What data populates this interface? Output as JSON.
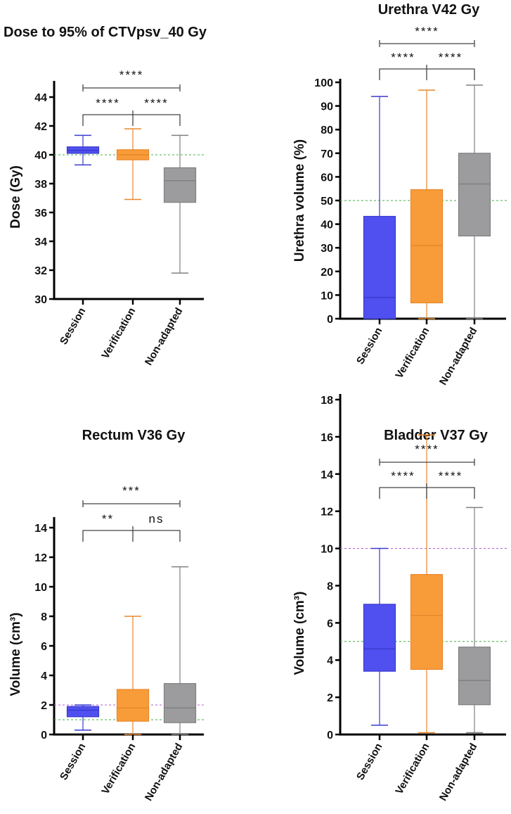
{
  "colors": {
    "session": "#5050f0",
    "verification": "#f89c3a",
    "non_adapted": "#9c9c9e",
    "green_ref": "#3cb043",
    "purple_ref": "#b060d0"
  },
  "chart_data": [
    {
      "type": "box",
      "title": "Dose to 95% of CTVpsv_40 Gy",
      "ylabel": "Dose (Gy)",
      "ylim": [
        30,
        44
      ],
      "yticks": [
        30,
        32,
        34,
        36,
        38,
        40,
        42,
        44
      ],
      "categories": [
        "Session",
        "Verification",
        "Non-adapted"
      ],
      "series": [
        {
          "name": "Session",
          "min": 39.3,
          "q1": 40.1,
          "median": 40.3,
          "q3": 40.55,
          "max": 41.35
        },
        {
          "name": "Verification",
          "min": 36.9,
          "q1": 39.65,
          "median": 40.0,
          "q3": 40.35,
          "max": 41.8
        },
        {
          "name": "Non-adapted",
          "min": 31.8,
          "q1": 36.7,
          "median": 38.2,
          "q3": 39.1,
          "max": 41.35
        }
      ],
      "reference_lines": [
        {
          "value": 40,
          "color": "green"
        }
      ],
      "significance": {
        "overall": "****",
        "left": "****",
        "right": "****"
      }
    },
    {
      "type": "box",
      "title": "Urethra V42 Gy",
      "ylabel": "Urethra volume (%)",
      "ylim": [
        0,
        100
      ],
      "yticks": [
        0,
        10,
        20,
        30,
        40,
        50,
        60,
        70,
        80,
        90,
        100
      ],
      "categories": [
        "Session",
        "Verification",
        "Non-adapted"
      ],
      "series": [
        {
          "name": "Session",
          "min": 0,
          "q1": 0,
          "median": 9,
          "q3": 43.3,
          "max": 94
        },
        {
          "name": "Verification",
          "min": 0,
          "q1": 6.7,
          "median": 31,
          "q3": 54.6,
          "max": 96.7
        },
        {
          "name": "Non-adapted",
          "min": 0,
          "q1": 35,
          "median": 57,
          "q3": 70,
          "max": 98.8
        }
      ],
      "reference_lines": [
        {
          "value": 50,
          "color": "green"
        }
      ],
      "significance": {
        "overall": "****",
        "left": "****",
        "right": "****"
      }
    },
    {
      "type": "box",
      "title": "Rectum V36 Gy",
      "ylabel": "Volume (cm³)",
      "ylim": [
        0,
        14
      ],
      "yticks": [
        0,
        2,
        4,
        6,
        8,
        10,
        12,
        14
      ],
      "categories": [
        "Session",
        "Verification",
        "Non-adapted"
      ],
      "series": [
        {
          "name": "Session",
          "min": 0.3,
          "q1": 1.2,
          "median": 1.65,
          "q3": 1.9,
          "max": 2.0
        },
        {
          "name": "Verification",
          "min": 0,
          "q1": 0.9,
          "median": 1.8,
          "q3": 3.05,
          "max": 8.0
        },
        {
          "name": "Non-adapted",
          "min": 0,
          "q1": 0.8,
          "median": 1.8,
          "q3": 3.45,
          "max": 11.35
        }
      ],
      "reference_lines": [
        {
          "value": 2,
          "color": "purple"
        },
        {
          "value": 1,
          "color": "green"
        }
      ],
      "significance": {
        "overall": "***",
        "left": "**",
        "right": "ns"
      }
    },
    {
      "type": "box",
      "title": "Bladder V37 Gy",
      "ylabel": "Volume (cm³)",
      "ylim": [
        0,
        18
      ],
      "yticks": [
        0,
        2,
        4,
        6,
        8,
        10,
        12,
        14,
        16,
        18
      ],
      "categories": [
        "Session",
        "Verification",
        "Non-adapted"
      ],
      "series": [
        {
          "name": "Session",
          "min": 0.5,
          "q1": 3.4,
          "median": 4.6,
          "q3": 7.0,
          "max": 10.0
        },
        {
          "name": "Verification",
          "min": 0.1,
          "q1": 3.5,
          "median": 6.4,
          "q3": 8.6,
          "max": 16.1
        },
        {
          "name": "Non-adapted",
          "min": 0.1,
          "q1": 1.6,
          "median": 2.9,
          "q3": 4.7,
          "max": 12.2
        }
      ],
      "reference_lines": [
        {
          "value": 10,
          "color": "purple"
        },
        {
          "value": 5,
          "color": "green"
        }
      ],
      "significance": {
        "overall": "****",
        "left": "****",
        "right": "****"
      }
    }
  ]
}
